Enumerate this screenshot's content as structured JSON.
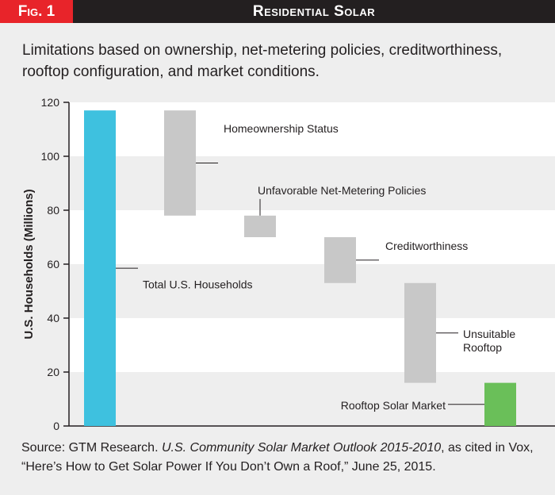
{
  "header": {
    "fig_label": "Fig. 1",
    "title": "Residential Solar"
  },
  "subtitle": "Limitations based on ownership, net-metering policies, creditworthiness, rooftop configuration, and market conditions.",
  "source": {
    "prefix": "Source",
    "text1": ": GTM Research. ",
    "italic": "U.S. Community Solar Market Outlook 2015-2010",
    "text2": ", as cited in Vox, “Here’s How to Get Solar Power If You Don’t Own a Roof,” June 25, 2015."
  },
  "colors": {
    "total": "#3ec1df",
    "step": "#c8c8c8",
    "market": "#6abf59",
    "band": "#ffffff",
    "panel": "#eeeeee"
  },
  "chart_data": {
    "type": "bar",
    "subtype": "waterfall",
    "ylabel": "U.S. Households (Millions)",
    "ylim": [
      0,
      120
    ],
    "yticks": [
      0,
      20,
      40,
      60,
      80,
      100,
      120
    ],
    "bars": [
      {
        "label": "Total U.S. Households",
        "start": 0,
        "end": 117,
        "kind": "total"
      },
      {
        "label": "Homeownership Status",
        "start": 78,
        "end": 117,
        "kind": "step"
      },
      {
        "label": "Unfavorable Net-Metering Policies",
        "start": 70,
        "end": 78,
        "kind": "step"
      },
      {
        "label": "Creditworthiness",
        "start": 53,
        "end": 70,
        "kind": "step"
      },
      {
        "label": "Unsuitable\nRooftop",
        "start": 16,
        "end": 53,
        "kind": "step"
      },
      {
        "label": "Rooftop Solar Market",
        "start": 0,
        "end": 16,
        "kind": "market"
      }
    ]
  }
}
